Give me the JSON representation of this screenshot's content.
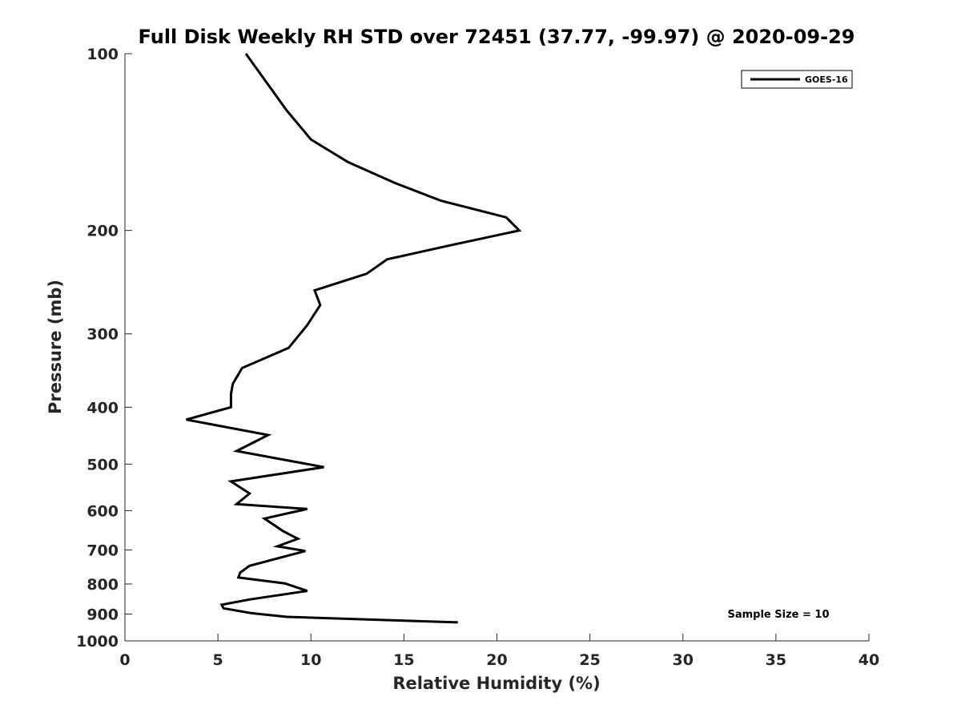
{
  "chart_data": {
    "type": "line",
    "title": "Full Disk Weekly RH STD over 72451 (37.77, -99.97) @ 2020-09-29",
    "xlabel": "Relative Humidity (%)",
    "ylabel": "Pressure (mb)",
    "xlim": [
      0,
      40
    ],
    "ylim": [
      100,
      1000
    ],
    "yscale": "log",
    "yreversed": true,
    "xticks": [
      0,
      5,
      10,
      15,
      20,
      25,
      30,
      35,
      40
    ],
    "yticks": [
      100,
      200,
      300,
      400,
      500,
      600,
      700,
      800,
      900,
      1000
    ],
    "grid": false,
    "legend_position": "top-right",
    "series": [
      {
        "name": "GOES-16",
        "color": "#000000",
        "points": [
          [
            6.5,
            100
          ],
          [
            8.7,
            125
          ],
          [
            10.0,
            140
          ],
          [
            12.0,
            153
          ],
          [
            14.5,
            166
          ],
          [
            17.0,
            178
          ],
          [
            20.5,
            190
          ],
          [
            21.2,
            200
          ],
          [
            17.5,
            212
          ],
          [
            14.1,
            224
          ],
          [
            13.0,
            237
          ],
          [
            10.2,
            253
          ],
          [
            10.5,
            268
          ],
          [
            9.8,
            290
          ],
          [
            8.8,
            317
          ],
          [
            6.3,
            343
          ],
          [
            5.8,
            365
          ],
          [
            5.7,
            380
          ],
          [
            5.7,
            400
          ],
          [
            3.3,
            420
          ],
          [
            7.7,
            446
          ],
          [
            6.0,
            475
          ],
          [
            10.7,
            506
          ],
          [
            5.7,
            535
          ],
          [
            6.7,
            561
          ],
          [
            6.0,
            585
          ],
          [
            9.8,
            596
          ],
          [
            7.5,
            619
          ],
          [
            8.5,
            650
          ],
          [
            9.3,
            670
          ],
          [
            8.2,
            690
          ],
          [
            9.7,
            703
          ],
          [
            6.7,
            745
          ],
          [
            6.2,
            765
          ],
          [
            6.1,
            780
          ],
          [
            8.6,
            798
          ],
          [
            9.8,
            822
          ],
          [
            6.7,
            850
          ],
          [
            5.2,
            868
          ],
          [
            5.3,
            880
          ],
          [
            6.8,
            897
          ],
          [
            8.7,
            910
          ],
          [
            17.9,
            930
          ]
        ]
      }
    ],
    "annotations": [
      "Sample Size = 10"
    ]
  }
}
